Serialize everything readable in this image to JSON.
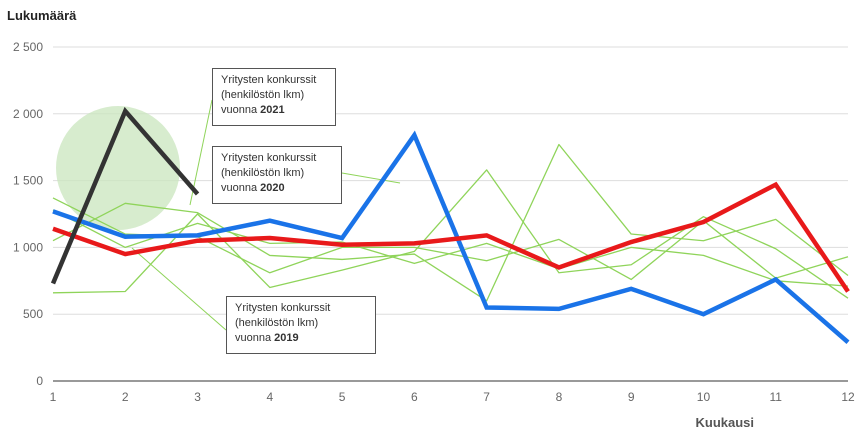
{
  "chart_data": {
    "type": "line",
    "ylabel": "Lukumäärä",
    "xlabel": "Kuukausi",
    "x": [
      1,
      2,
      3,
      4,
      5,
      6,
      7,
      8,
      9,
      10,
      11,
      12
    ],
    "xticks": [
      "1",
      "2",
      "3",
      "4",
      "5",
      "6",
      "7",
      "8",
      "9",
      "10",
      "11",
      "12"
    ],
    "yticks": [
      "0",
      "500",
      "1 000",
      "1 500",
      "2 000",
      "2 500"
    ],
    "ytick_values": [
      0,
      500,
      1000,
      1500,
      2000,
      2500
    ],
    "ylim": [
      0,
      2500
    ],
    "grid": true,
    "highlight_series": [
      {
        "values": [
          730,
          2020,
          1400
        ],
        "color": "#333333"
      },
      {
        "values": [
          1270,
          1080,
          1090,
          1200,
          1070,
          1840,
          550,
          540,
          690,
          500,
          760,
          290
        ],
        "color": "#1a73e8"
      },
      {
        "values": [
          1140,
          950,
          1050,
          1070,
          1020,
          1030,
          1090,
          850,
          1040,
          1190,
          1470,
          670
        ],
        "color": "#e8191a"
      }
    ],
    "background_series": [
      {
        "values": [
          660,
          670,
          1250,
          700,
          830,
          970,
          1580,
          810,
          870,
          1230,
          990,
          620
        ]
      },
      {
        "values": [
          1050,
          1330,
          1260,
          940,
          910,
          950,
          600,
          1770,
          1100,
          1050,
          1210,
          790
        ]
      },
      {
        "values": [
          1370,
          1100,
          1080,
          810,
          1000,
          1000,
          900,
          1060,
          760,
          1200,
          770,
          930
        ]
      },
      {
        "values": [
          1280,
          1000,
          1180,
          1030,
          1040,
          880,
          1030,
          840,
          1000,
          940,
          750,
          710
        ]
      }
    ],
    "annotations": [
      {
        "lines": [
          "Yritysten konkurssit",
          "(henkilöstön lkm)"
        ],
        "prefix": "vuonna ",
        "year": "2021"
      },
      {
        "lines": [
          "Yritysten konkurssit",
          "(henkilöstön lkm)"
        ],
        "prefix": "vuonna ",
        "year": "2020"
      },
      {
        "lines": [
          "Yritysten konkurssit",
          "(henkilöstön lkm)"
        ],
        "prefix": "vuonna ",
        "year": "2019"
      }
    ],
    "colors": {
      "background_series": "#8fd45a",
      "highlight_circle": "#c9e6bd",
      "grid": "#dddddd",
      "axis": "#333333"
    }
  }
}
